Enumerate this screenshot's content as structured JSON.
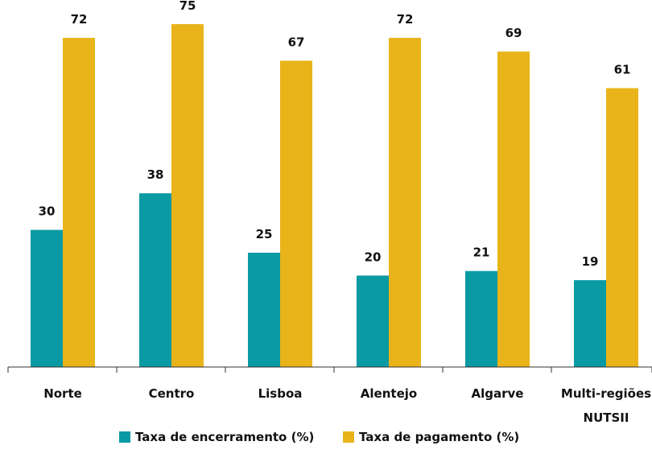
{
  "chart_data": {
    "type": "bar",
    "categories": [
      [
        "Norte"
      ],
      [
        "Centro"
      ],
      [
        "Lisboa"
      ],
      [
        "Alentejo"
      ],
      [
        "Algarve"
      ],
      [
        "Multi-regiões",
        "NUTSII"
      ]
    ],
    "series": [
      {
        "name": "Taxa de encerramento (%)",
        "color": "#0a9aa3",
        "values": [
          30,
          38,
          25,
          20,
          21,
          19
        ]
      },
      {
        "name": "Taxa de pagamento (%)",
        "color": "#e8b41a",
        "values": [
          72,
          75,
          67,
          72,
          69,
          61
        ]
      }
    ],
    "ylim": [
      0,
      80
    ],
    "grid": false,
    "legend_position": "bottom-center",
    "data_labels": true
  }
}
